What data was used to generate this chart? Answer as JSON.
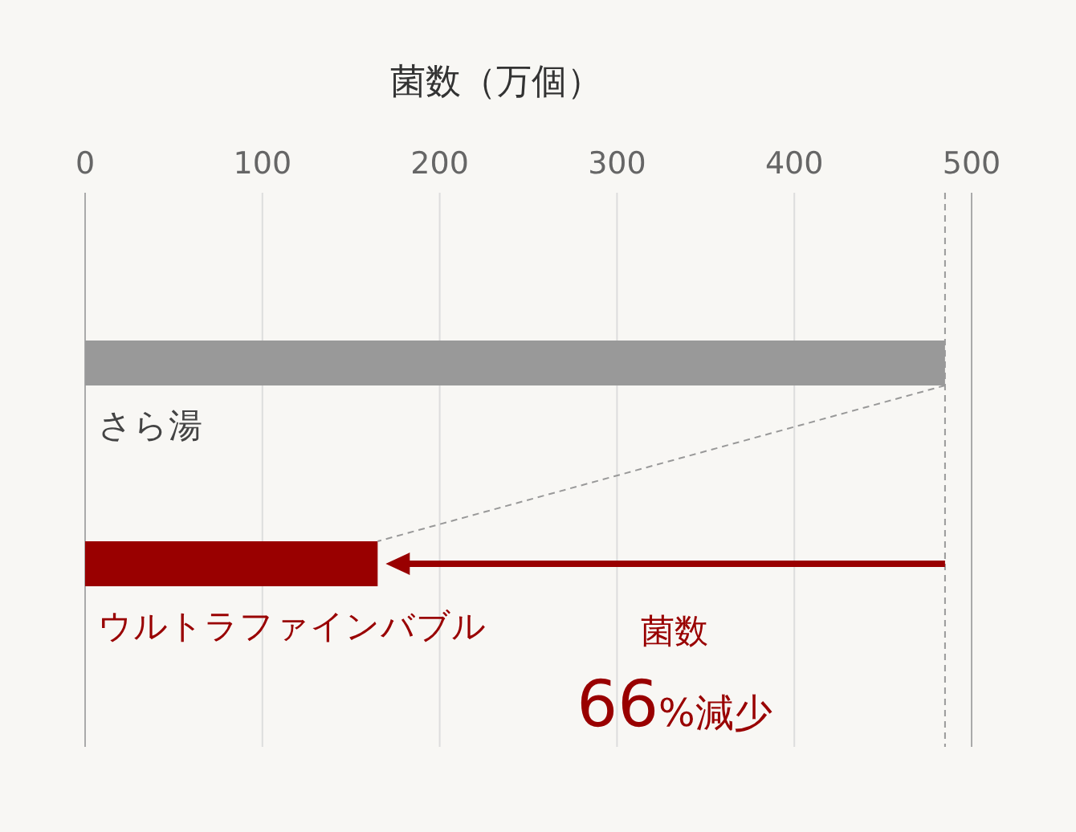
{
  "chart_data": {
    "type": "bar",
    "orientation": "horizontal",
    "xlabel": "菌数（万個）",
    "categories": [
      "さら湯",
      "ウルトラファインバブル"
    ],
    "values": [
      485,
      165
    ],
    "colors": [
      "#999999",
      "#990000"
    ],
    "xlim": [
      0,
      500
    ],
    "xticks": [
      0,
      100,
      200,
      300,
      400,
      500
    ],
    "grid": "x",
    "ref_lines": [
      {
        "axis": "x",
        "value": 485,
        "line_style": "dashed",
        "color": "#999999"
      }
    ],
    "annotations": [
      "菌数",
      "66%減少"
    ]
  }
}
